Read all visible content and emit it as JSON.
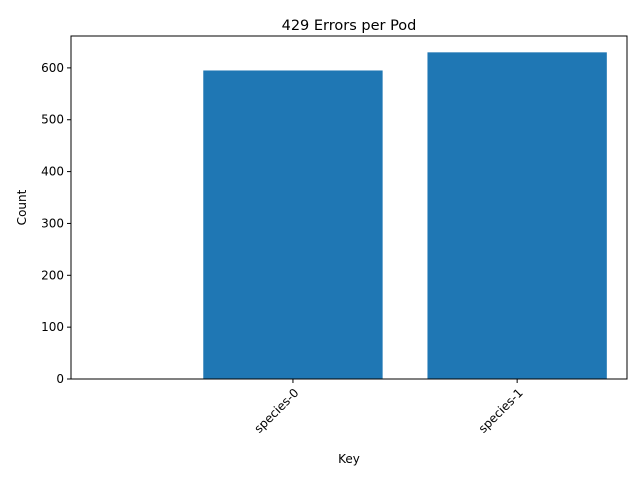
{
  "chart_data": {
    "type": "bar",
    "title": "429 Errors per Pod",
    "xlabel": "Key",
    "ylabel": "Count",
    "categories": [
      "species-0",
      "species-1"
    ],
    "values": [
      595,
      630
    ],
    "ylim": [
      0,
      661.5
    ],
    "yticks": [
      0,
      100,
      200,
      300,
      400,
      500,
      600
    ],
    "bar_color": "#1f77b4",
    "grid": false,
    "legend": "none",
    "xtick_rotation": 45
  }
}
